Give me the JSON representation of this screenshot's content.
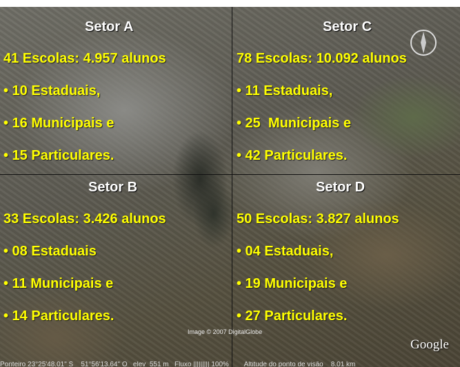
{
  "sectors": [
    {
      "title": "Setor A",
      "lines": [
        "41 Escolas: 4.957 alunos",
        "• 10 Estaduais,",
        "• 16 Municipais e",
        "• 15 Particulares."
      ]
    },
    {
      "title": "Setor C",
      "lines": [
        "78 Escolas: 10.092 alunos",
        "• 11 Estaduais,",
        "• 25  Municipais e",
        "• 42 Particulares."
      ]
    },
    {
      "title": "Setor B",
      "lines": [
        "33 Escolas: 3.426 alunos",
        "• 08 Estaduais",
        "• 11 Municipais e",
        "• 14 Particulares."
      ]
    },
    {
      "title": "Setor D",
      "lines": [
        "50 Escolas: 3.827 alunos",
        "• 04 Estaduais,",
        "• 19 Municipais e",
        "• 27 Particulares."
      ]
    }
  ],
  "credit": "Image © 2007 DigitalGlobe",
  "logo": "Google",
  "status_bar": "Ponteiro 23°25'48.01\" S    51°56'13.64\" O   elev  551 m   Fluxo ||||||||| 100%        Altitude do ponto de visão    8.01 km"
}
